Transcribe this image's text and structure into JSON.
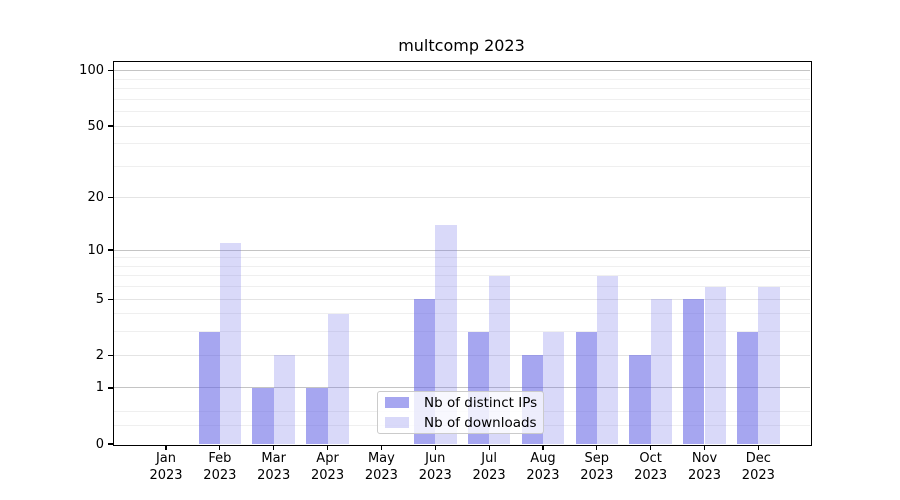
{
  "chart_data": {
    "type": "bar",
    "title": "multcomp 2023",
    "categories": [
      "Jan",
      "Feb",
      "Mar",
      "Apr",
      "May",
      "Jun",
      "Jul",
      "Aug",
      "Sep",
      "Oct",
      "Nov",
      "Dec"
    ],
    "year": "2023",
    "series": [
      {
        "name": "Nb of distinct IPs",
        "color": "#6666e6",
        "alpha": 0.58,
        "values": [
          0,
          3,
          1,
          1,
          0,
          5,
          3,
          2,
          3,
          2,
          5,
          3
        ]
      },
      {
        "name": "Nb of downloads",
        "color": "#6666e6",
        "alpha": 0.25,
        "values": [
          0,
          11,
          2,
          4,
          0,
          14,
          7,
          3,
          7,
          5,
          6,
          6
        ]
      }
    ],
    "yscale": "log1p",
    "ylim": [
      0,
      113
    ],
    "yticks": [
      0,
      1,
      2,
      5,
      10,
      20,
      50,
      100
    ],
    "ytick_major": [
      1,
      10,
      100
    ],
    "ytick_mid": [
      2,
      5,
      20,
      50
    ],
    "ytick_minor": [
      0.25,
      0.5,
      3,
      4,
      6,
      7,
      8,
      9,
      30,
      40,
      60,
      70,
      80,
      90
    ],
    "grid": true,
    "legend_position": "lower center"
  },
  "colors": {
    "grid_major": "#c4c4c4",
    "grid_mid": "#e4e4e4",
    "grid_minor": "#efefef",
    "axis": "#000000",
    "legend_border": "#cbcbcb",
    "background": "#ffffff"
  }
}
